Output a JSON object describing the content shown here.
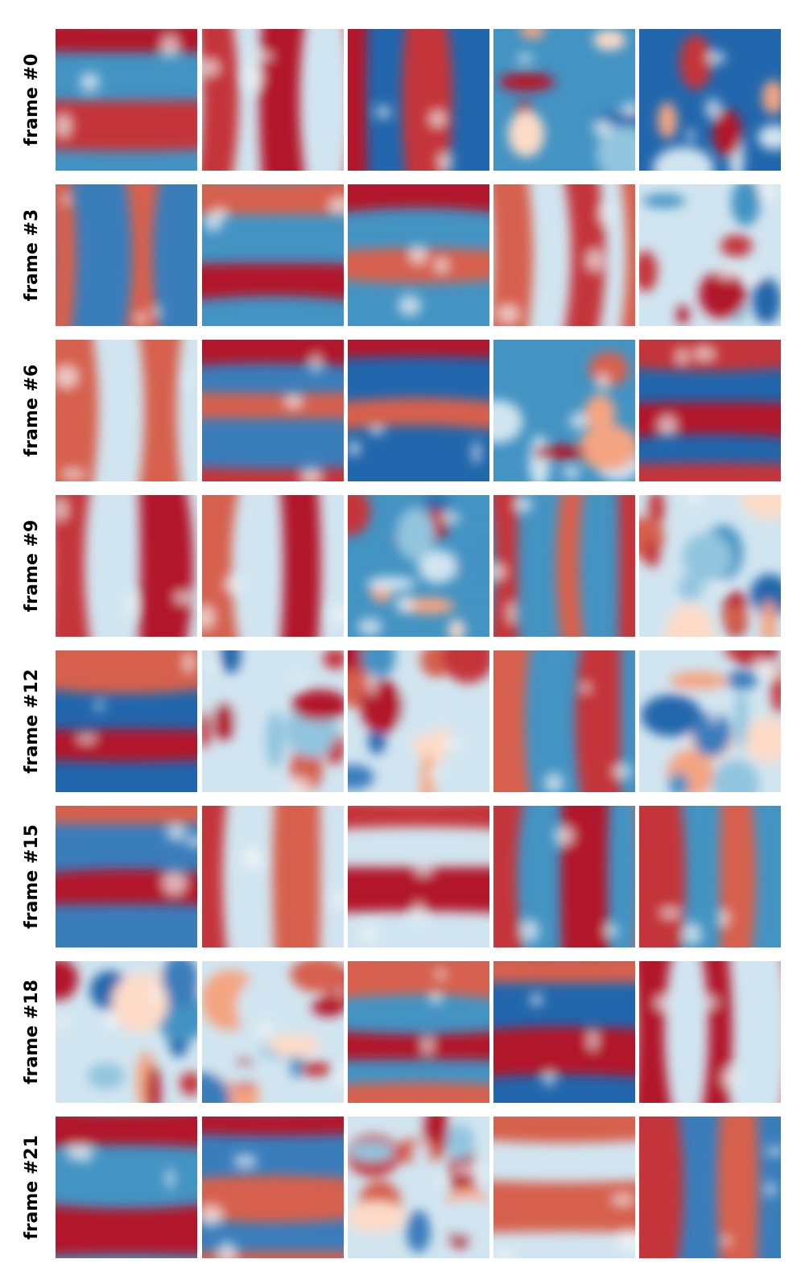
{
  "rows": [
    {
      "label": "frame #0"
    },
    {
      "label": "frame #3"
    },
    {
      "label": "frame #6"
    },
    {
      "label": "frame #9"
    },
    {
      "label": "frame #12"
    },
    {
      "label": "frame #15"
    },
    {
      "label": "frame #18"
    },
    {
      "label": "frame #21"
    }
  ]
}
